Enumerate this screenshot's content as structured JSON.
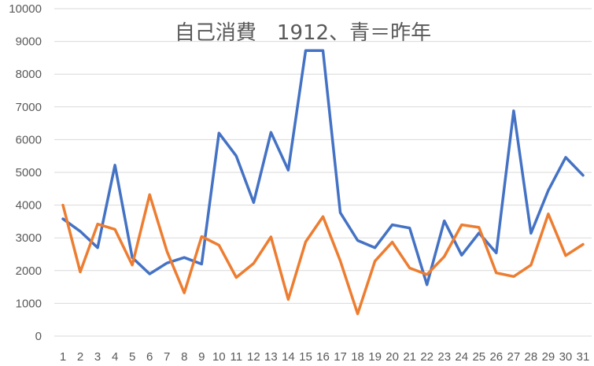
{
  "chart_data": {
    "type": "line",
    "title": "自己消費　1912、青＝昨年",
    "xlabel": "",
    "ylabel": "",
    "ylim": [
      0,
      10000
    ],
    "yticks": [
      0,
      1000,
      2000,
      3000,
      4000,
      5000,
      6000,
      7000,
      8000,
      9000,
      10000
    ],
    "grid": true,
    "categories": [
      "1",
      "2",
      "3",
      "4",
      "5",
      "6",
      "7",
      "8",
      "9",
      "10",
      "11",
      "12",
      "13",
      "14",
      "15",
      "16",
      "17",
      "18",
      "19",
      "20",
      "21",
      "22",
      "23",
      "24",
      "25",
      "26",
      "27",
      "28",
      "29",
      "30",
      "31"
    ],
    "series": [
      {
        "color": "#4472c4",
        "values": [
          3580,
          3200,
          2700,
          5220,
          2400,
          1900,
          2230,
          2400,
          2200,
          6200,
          5500,
          4080,
          6220,
          5070,
          8720,
          8720,
          3770,
          2920,
          2700,
          3400,
          3300,
          1570,
          3520,
          2470,
          3150,
          2540,
          6880,
          3140,
          4450,
          5460,
          4910
        ]
      },
      {
        "color": "#ed7d31",
        "values": [
          4000,
          1960,
          3420,
          3260,
          2170,
          4320,
          2590,
          1320,
          3040,
          2780,
          1790,
          2220,
          3030,
          1120,
          2880,
          3650,
          2300,
          680,
          2290,
          2870,
          2080,
          1880,
          2430,
          3400,
          3320,
          1930,
          1820,
          2170,
          3730,
          2460,
          2800
        ]
      }
    ]
  }
}
